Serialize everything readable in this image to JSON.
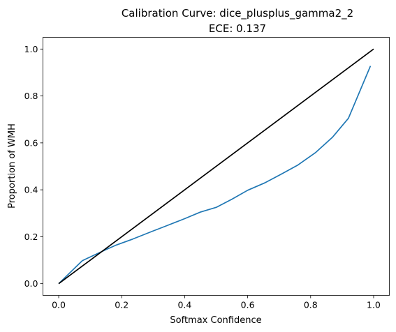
{
  "chart_data": {
    "type": "line",
    "title": "Calibration Curve: dice_plusplus_gamma2_2",
    "subtitle": "ECE: 0.137",
    "xlabel": "Softmax Confidence",
    "ylabel": "Proportion of WMH",
    "xlim": [
      -0.05,
      1.05
    ],
    "ylim": [
      -0.05,
      1.05
    ],
    "xticks": [
      "0.0",
      "0.2",
      "0.4",
      "0.6",
      "0.8",
      "1.0"
    ],
    "yticks": [
      "0.0",
      "0.2",
      "0.4",
      "0.6",
      "0.8",
      "1.0"
    ],
    "grid": false,
    "legend": "none",
    "series": [
      {
        "color": "#1f77b4",
        "x": [
          0.0,
          0.075,
          0.15,
          0.18,
          0.235,
          0.295,
          0.345,
          0.4,
          0.45,
          0.5,
          0.55,
          0.6,
          0.655,
          0.71,
          0.76,
          0.815,
          0.87,
          0.92,
          0.99
        ],
        "y": [
          0.0,
          0.098,
          0.145,
          0.163,
          0.19,
          0.222,
          0.248,
          0.277,
          0.305,
          0.325,
          0.36,
          0.398,
          0.43,
          0.469,
          0.506,
          0.558,
          0.625,
          0.705,
          0.928
        ]
      },
      {
        "color": "#000000",
        "x": [
          0.0,
          1.0
        ],
        "y": [
          0.0,
          1.0
        ]
      }
    ]
  }
}
